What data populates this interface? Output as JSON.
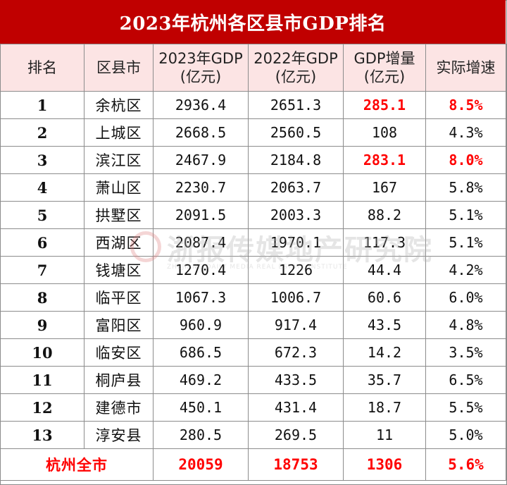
{
  "title": "2023年杭州各区县市GDP排名",
  "headers": {
    "rank": "排名",
    "district": "区县市",
    "gdp2023_line1": "2023年GDP",
    "gdp2023_line2": "(亿元)",
    "gdp2022_line1": "2022年GDP",
    "gdp2022_line2": "(亿元)",
    "increase_line1": "GDP增量",
    "increase_line2": "(亿元)",
    "growth": "实际增速"
  },
  "rows": [
    {
      "rank": "1",
      "name": "余杭区",
      "gdp2023": "2936.4",
      "gdp2022": "2651.3",
      "increase": "285.1",
      "growth": "8.5%"
    },
    {
      "rank": "2",
      "name": "上城区",
      "gdp2023": "2668.5",
      "gdp2022": "2560.5",
      "increase": "108",
      "growth": "4.3%"
    },
    {
      "rank": "3",
      "name": "滨江区",
      "gdp2023": "2467.9",
      "gdp2022": "2184.8",
      "increase": "283.1",
      "growth": "8.0%"
    },
    {
      "rank": "4",
      "name": "萧山区",
      "gdp2023": "2230.7",
      "gdp2022": "2063.7",
      "increase": "167",
      "growth": "5.8%"
    },
    {
      "rank": "5",
      "name": "拱墅区",
      "gdp2023": "2091.5",
      "gdp2022": "2003.3",
      "increase": "88.2",
      "growth": "5.1%"
    },
    {
      "rank": "6",
      "name": "西湖区",
      "gdp2023": "2087.4",
      "gdp2022": "1970.1",
      "increase": "117.3",
      "growth": "5.1%"
    },
    {
      "rank": "7",
      "name": "钱塘区",
      "gdp2023": "1270.4",
      "gdp2022": "1226",
      "increase": "44.4",
      "growth": "4.2%"
    },
    {
      "rank": "8",
      "name": "临平区",
      "gdp2023": "1067.3",
      "gdp2022": "1006.7",
      "increase": "60.6",
      "growth": "6.0%"
    },
    {
      "rank": "9",
      "name": "富阳区",
      "gdp2023": "960.9",
      "gdp2022": "917.4",
      "increase": "43.5",
      "growth": "4.8%"
    },
    {
      "rank": "10",
      "name": "临安区",
      "gdp2023": "686.5",
      "gdp2022": "672.3",
      "increase": "14.2",
      "growth": "3.5%"
    },
    {
      "rank": "11",
      "name": "桐庐县",
      "gdp2023": "469.2",
      "gdp2022": "433.5",
      "increase": "35.7",
      "growth": "6.5%"
    },
    {
      "rank": "12",
      "name": "建德市",
      "gdp2023": "450.1",
      "gdp2022": "431.4",
      "increase": "18.7",
      "growth": "5.5%"
    },
    {
      "rank": "13",
      "name": "淳安县",
      "gdp2023": "280.5",
      "gdp2022": "269.5",
      "increase": "11",
      "growth": "5.0%"
    }
  ],
  "total": {
    "name": "杭州全市",
    "gdp2023": "20059",
    "gdp2022": "18753",
    "increase": "1306",
    "growth": "5.6%"
  },
  "watermark": {
    "text": "浙报传媒地产研究院",
    "subtext": "ZHEJIANG DAILY MEDIA REAL ESTATE INSTITUTE"
  },
  "colors": {
    "title_bg": "#c00000",
    "header_bg": "#fce4e4",
    "highlight": "#ff0000"
  }
}
